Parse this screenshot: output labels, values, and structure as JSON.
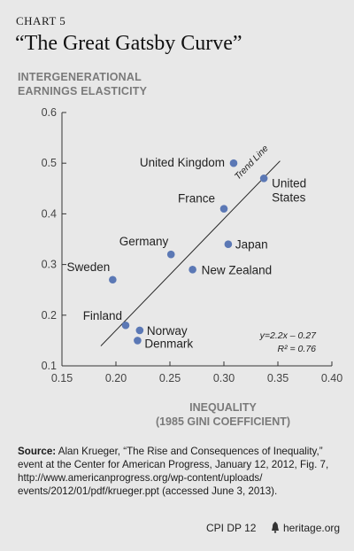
{
  "chart_label": "CHART 5",
  "chart_title": "“The Great Gatsby Curve”",
  "chart_data": {
    "type": "scatter",
    "ylabel_lines": [
      "INTERGENERATIONAL",
      "EARNINGS ELASTICITY"
    ],
    "xlabel_lines": [
      "INEQUALITY",
      "(1985 GINI COEFFICIENT)"
    ],
    "xlim": [
      0.15,
      0.4
    ],
    "ylim": [
      0.1,
      0.6
    ],
    "x_ticks": [
      0.15,
      0.2,
      0.25,
      0.3,
      0.35,
      0.4
    ],
    "x_tick_labels": [
      "0.15",
      "0.20",
      "0.25",
      "0.30",
      "0.35",
      "0.40"
    ],
    "y_ticks": [
      0.1,
      0.2,
      0.3,
      0.4,
      0.5,
      0.6
    ],
    "y_tick_labels": [
      "0.1",
      "0.2",
      "0.3",
      "0.4",
      "0.5",
      "0.6"
    ],
    "grid": false,
    "point_color": "#5b78b5",
    "points": [
      {
        "label": "United Kingdom",
        "x": 0.309,
        "y": 0.5
      },
      {
        "label": "United States",
        "x": 0.337,
        "y": 0.47
      },
      {
        "label": "France",
        "x": 0.3,
        "y": 0.41
      },
      {
        "label": "Japan",
        "x": 0.304,
        "y": 0.34
      },
      {
        "label": "Germany",
        "x": 0.251,
        "y": 0.32
      },
      {
        "label": "New Zealand",
        "x": 0.271,
        "y": 0.29
      },
      {
        "label": "Sweden",
        "x": 0.197,
        "y": 0.27
      },
      {
        "label": "Finland",
        "x": 0.209,
        "y": 0.18
      },
      {
        "label": "Norway",
        "x": 0.222,
        "y": 0.17
      },
      {
        "label": "Denmark",
        "x": 0.22,
        "y": 0.15
      }
    ],
    "trend_line": {
      "label": "Trend Line",
      "x_start": 0.186,
      "x_end": 0.352,
      "slope": 2.2,
      "intercept": -0.27
    },
    "equation": "y=2.2x – 0.27",
    "r_squared": "R² = 0.76"
  },
  "source": {
    "bold": "Source:",
    "text": " Alan Krueger, “The Rise and Consequences of Inequality,” event at the Center for American Progress, January 12, 2012, Fig. 7, http://www.americanprogress.org/wp-content/uploads/ events/2012/01/pdf/krueger.ppt (accessed June 3, 2013)."
  },
  "footer": {
    "code": "CPI DP 12",
    "site": "heritage.org"
  }
}
